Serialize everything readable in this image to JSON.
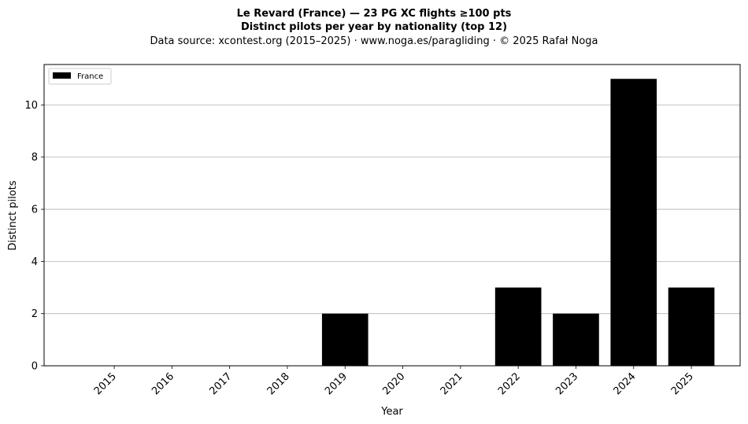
{
  "chart_data": {
    "type": "bar",
    "title_line1": "Le Revard (France)  —  23 PG XC flights ≥100 pts",
    "title_line2": "Distinct pilots per year by nationality (top 12)",
    "subtitle": "Data source: xcontest.org (2015–2025)  ·  www.noga.es/paragliding  ·  © 2025 Rafał Noga",
    "xlabel": "Year",
    "ylabel": "Distinct pilots",
    "categories": [
      "2015",
      "2016",
      "2017",
      "2018",
      "2019",
      "2020",
      "2021",
      "2022",
      "2023",
      "2024",
      "2025"
    ],
    "series": [
      {
        "name": "France",
        "color": "#000000",
        "values": [
          0,
          0,
          0,
          0,
          2,
          0,
          0,
          3,
          2,
          11,
          3
        ]
      }
    ],
    "ylim": [
      0,
      11.55
    ],
    "yticks": [
      0,
      2,
      4,
      6,
      8,
      10
    ],
    "grid": "horizontal",
    "legend_position": "top-left"
  }
}
